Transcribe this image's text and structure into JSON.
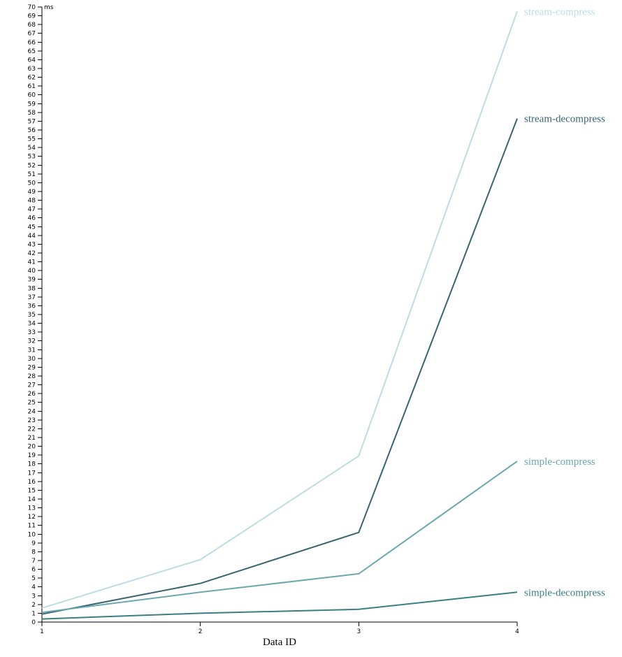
{
  "chart_data": {
    "type": "line",
    "xlabel": "Data ID",
    "ylabel": "ms",
    "x": [
      1,
      2,
      3,
      4
    ],
    "xlim": [
      1,
      4
    ],
    "ylim": [
      0,
      70
    ],
    "y_tick_step": 1,
    "grid": false,
    "legend": "inline labels at line ends (right)",
    "series": [
      {
        "name": "stream-compress",
        "color": "#bcdde3",
        "values": [
          1.6,
          7.1,
          18.9,
          69.5
        ]
      },
      {
        "name": "stream-decompress",
        "color": "#366670",
        "values": [
          0.9,
          4.4,
          10.2,
          57.3
        ]
      },
      {
        "name": "simple-compress",
        "color": "#6aa8b0",
        "values": [
          1.1,
          3.4,
          5.5,
          18.3
        ]
      },
      {
        "name": "simple-decompress",
        "color": "#3a7f84",
        "values": [
          0.35,
          1.0,
          1.45,
          3.4
        ]
      }
    ]
  }
}
